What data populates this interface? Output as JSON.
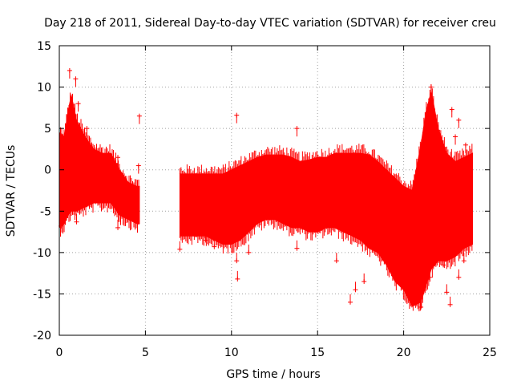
{
  "chart_data": {
    "type": "scatter",
    "title": "Day 218 of 2011, Sidereal Day-to-day VTEC variation (SDTVAR) for receiver creu",
    "xlabel": "GPS time / hours",
    "ylabel": "SDTVAR / TECUs",
    "xlim": [
      0,
      25
    ],
    "ylim": [
      -20,
      15
    ],
    "xticks": [
      0,
      5,
      10,
      15,
      20,
      25
    ],
    "xtick_labels": [
      "0",
      "5",
      "10",
      "15",
      "20",
      "25"
    ],
    "yticks": [
      -20,
      -15,
      -10,
      -5,
      0,
      5,
      10,
      15
    ],
    "ytick_labels": [
      "-20",
      "-15",
      "-10",
      "-5",
      "0",
      "5",
      "10",
      "15"
    ],
    "grid": true,
    "marker": "+",
    "color": "#ff0000",
    "series": [
      {
        "name": "SDTVAR",
        "envelope": [
          {
            "x": 0.0,
            "lo": -7.0,
            "hi": 4.5
          },
          {
            "x": 0.3,
            "lo": -6.5,
            "hi": 4.0
          },
          {
            "x": 0.5,
            "lo": -5.5,
            "hi": 7.0
          },
          {
            "x": 0.7,
            "lo": -5.0,
            "hi": 9.0
          },
          {
            "x": 1.0,
            "lo": -5.0,
            "hi": 6.0
          },
          {
            "x": 1.5,
            "lo": -4.5,
            "hi": 4.0
          },
          {
            "x": 2.0,
            "lo": -4.0,
            "hi": 2.5
          },
          {
            "x": 2.5,
            "lo": -4.0,
            "hi": 2.0
          },
          {
            "x": 3.0,
            "lo": -4.0,
            "hi": 2.0
          },
          {
            "x": 3.5,
            "lo": -5.5,
            "hi": 0.0
          },
          {
            "x": 4.0,
            "lo": -6.0,
            "hi": -1.5
          },
          {
            "x": 4.5,
            "lo": -6.5,
            "hi": -2.0
          },
          {
            "x": 4.65,
            "lo": -6.5,
            "hi": -2.0
          },
          {
            "x": 7.0,
            "lo": -8.0,
            "hi": -0.5
          },
          {
            "x": 7.5,
            "lo": -8.0,
            "hi": -0.5
          },
          {
            "x": 8.0,
            "lo": -8.0,
            "hi": -0.5
          },
          {
            "x": 8.5,
            "lo": -8.0,
            "hi": -0.5
          },
          {
            "x": 9.0,
            "lo": -8.5,
            "hi": -0.5
          },
          {
            "x": 9.5,
            "lo": -9.0,
            "hi": -0.5
          },
          {
            "x": 10.0,
            "lo": -9.0,
            "hi": 0.0
          },
          {
            "x": 10.5,
            "lo": -8.5,
            "hi": 0.5
          },
          {
            "x": 11.0,
            "lo": -7.5,
            "hi": 1.0
          },
          {
            "x": 11.5,
            "lo": -6.5,
            "hi": 1.5
          },
          {
            "x": 12.0,
            "lo": -6.0,
            "hi": 1.8
          },
          {
            "x": 12.5,
            "lo": -6.0,
            "hi": 1.8
          },
          {
            "x": 13.0,
            "lo": -6.5,
            "hi": 1.8
          },
          {
            "x": 13.5,
            "lo": -7.0,
            "hi": 1.5
          },
          {
            "x": 14.0,
            "lo": -7.0,
            "hi": 1.0
          },
          {
            "x": 14.5,
            "lo": -7.5,
            "hi": 1.2
          },
          {
            "x": 15.0,
            "lo": -7.5,
            "hi": 1.5
          },
          {
            "x": 15.5,
            "lo": -7.0,
            "hi": 1.5
          },
          {
            "x": 16.0,
            "lo": -7.0,
            "hi": 2.0
          },
          {
            "x": 16.5,
            "lo": -7.5,
            "hi": 2.0
          },
          {
            "x": 17.0,
            "lo": -8.0,
            "hi": 2.0
          },
          {
            "x": 17.5,
            "lo": -8.5,
            "hi": 2.0
          },
          {
            "x": 18.0,
            "lo": -9.5,
            "hi": 1.8
          },
          {
            "x": 18.5,
            "lo": -10.0,
            "hi": 1.0
          },
          {
            "x": 19.0,
            "lo": -11.5,
            "hi": 0.0
          },
          {
            "x": 19.5,
            "lo": -13.5,
            "hi": -1.0
          },
          {
            "x": 20.0,
            "lo": -14.5,
            "hi": -2.0
          },
          {
            "x": 20.5,
            "lo": -16.5,
            "hi": -2.5
          },
          {
            "x": 21.0,
            "lo": -16.0,
            "hi": 3.0
          },
          {
            "x": 21.3,
            "lo": -14.0,
            "hi": 7.0
          },
          {
            "x": 21.6,
            "lo": -12.0,
            "hi": 9.5
          },
          {
            "x": 22.0,
            "lo": -11.0,
            "hi": 5.0
          },
          {
            "x": 22.5,
            "lo": -11.0,
            "hi": 2.0
          },
          {
            "x": 23.0,
            "lo": -10.5,
            "hi": 1.0
          },
          {
            "x": 23.5,
            "lo": -9.5,
            "hi": 1.5
          },
          {
            "x": 24.0,
            "lo": -9.0,
            "hi": 2.0
          }
        ],
        "points": [
          {
            "x": 0.6,
            "y": 12.0
          },
          {
            "x": 0.95,
            "y": 11.0
          },
          {
            "x": 1.1,
            "y": 8.0
          },
          {
            "x": 1.6,
            "y": 5.0
          },
          {
            "x": 0.1,
            "y": -6.8
          },
          {
            "x": 1.0,
            "y": -6.3
          },
          {
            "x": 3.4,
            "y": 1.5
          },
          {
            "x": 3.4,
            "y": -7.0
          },
          {
            "x": 4.65,
            "y": 6.5
          },
          {
            "x": 4.6,
            "y": 0.5
          },
          {
            "x": 7.0,
            "y": -9.6
          },
          {
            "x": 8.5,
            "y": -8.5
          },
          {
            "x": 9.0,
            "y": -9.3
          },
          {
            "x": 10.3,
            "y": 6.6
          },
          {
            "x": 10.3,
            "y": -11.0
          },
          {
            "x": 10.35,
            "y": -13.2
          },
          {
            "x": 11.0,
            "y": -10.0
          },
          {
            "x": 13.8,
            "y": 5.0
          },
          {
            "x": 13.8,
            "y": -9.5
          },
          {
            "x": 16.1,
            "y": -11.0
          },
          {
            "x": 16.9,
            "y": -16.0
          },
          {
            "x": 17.2,
            "y": -14.5
          },
          {
            "x": 17.7,
            "y": -13.5
          },
          {
            "x": 17.9,
            "y": -8.5
          },
          {
            "x": 19.5,
            "y": -1.5
          },
          {
            "x": 21.0,
            "y": -16.6
          },
          {
            "x": 21.6,
            "y": 10.0
          },
          {
            "x": 21.5,
            "y": -13.0
          },
          {
            "x": 22.3,
            "y": -11.5
          },
          {
            "x": 22.8,
            "y": 7.3
          },
          {
            "x": 22.5,
            "y": -14.8
          },
          {
            "x": 22.7,
            "y": -16.3
          },
          {
            "x": 23.2,
            "y": 6.0
          },
          {
            "x": 23.0,
            "y": 4.0
          },
          {
            "x": 23.6,
            "y": 3.0
          },
          {
            "x": 23.5,
            "y": -11.0
          },
          {
            "x": 23.2,
            "y": -13.0
          }
        ]
      }
    ]
  }
}
